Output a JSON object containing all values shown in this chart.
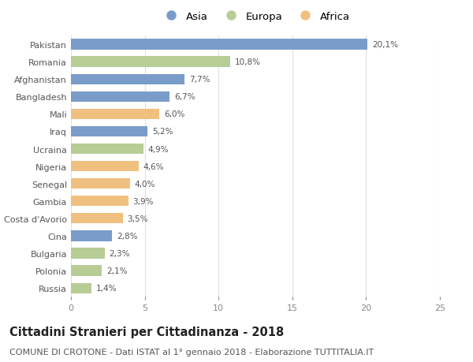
{
  "categories": [
    "Pakistan",
    "Romania",
    "Afghanistan",
    "Bangladesh",
    "Mali",
    "Iraq",
    "Ucraina",
    "Nigeria",
    "Senegal",
    "Gambia",
    "Costa d'Avorio",
    "Cina",
    "Bulgaria",
    "Polonia",
    "Russia"
  ],
  "values": [
    20.1,
    10.8,
    7.7,
    6.7,
    6.0,
    5.2,
    4.9,
    4.6,
    4.0,
    3.9,
    3.5,
    2.8,
    2.3,
    2.1,
    1.4
  ],
  "labels": [
    "20,1%",
    "10,8%",
    "7,7%",
    "6,7%",
    "6,0%",
    "5,2%",
    "4,9%",
    "4,6%",
    "4,0%",
    "3,9%",
    "3,5%",
    "2,8%",
    "2,3%",
    "2,1%",
    "1,4%"
  ],
  "continent": [
    "Asia",
    "Europa",
    "Asia",
    "Asia",
    "Africa",
    "Asia",
    "Europa",
    "Africa",
    "Africa",
    "Africa",
    "Africa",
    "Asia",
    "Europa",
    "Europa",
    "Europa"
  ],
  "colors": {
    "Asia": "#7a9cc9",
    "Europa": "#b8cc96",
    "Africa": "#f0c080"
  },
  "xlim": [
    0,
    25
  ],
  "xticks": [
    0,
    5,
    10,
    15,
    20,
    25
  ],
  "title": "Cittadini Stranieri per Cittadinanza - 2018",
  "subtitle": "COMUNE DI CROTONE - Dati ISTAT al 1° gennaio 2018 - Elaborazione TUTTITALIA.IT",
  "bg_color": "#ffffff",
  "bar_height": 0.6,
  "title_fontsize": 10.5,
  "subtitle_fontsize": 8,
  "label_fontsize": 7.5,
  "tick_fontsize": 8,
  "legend_fontsize": 9.5
}
